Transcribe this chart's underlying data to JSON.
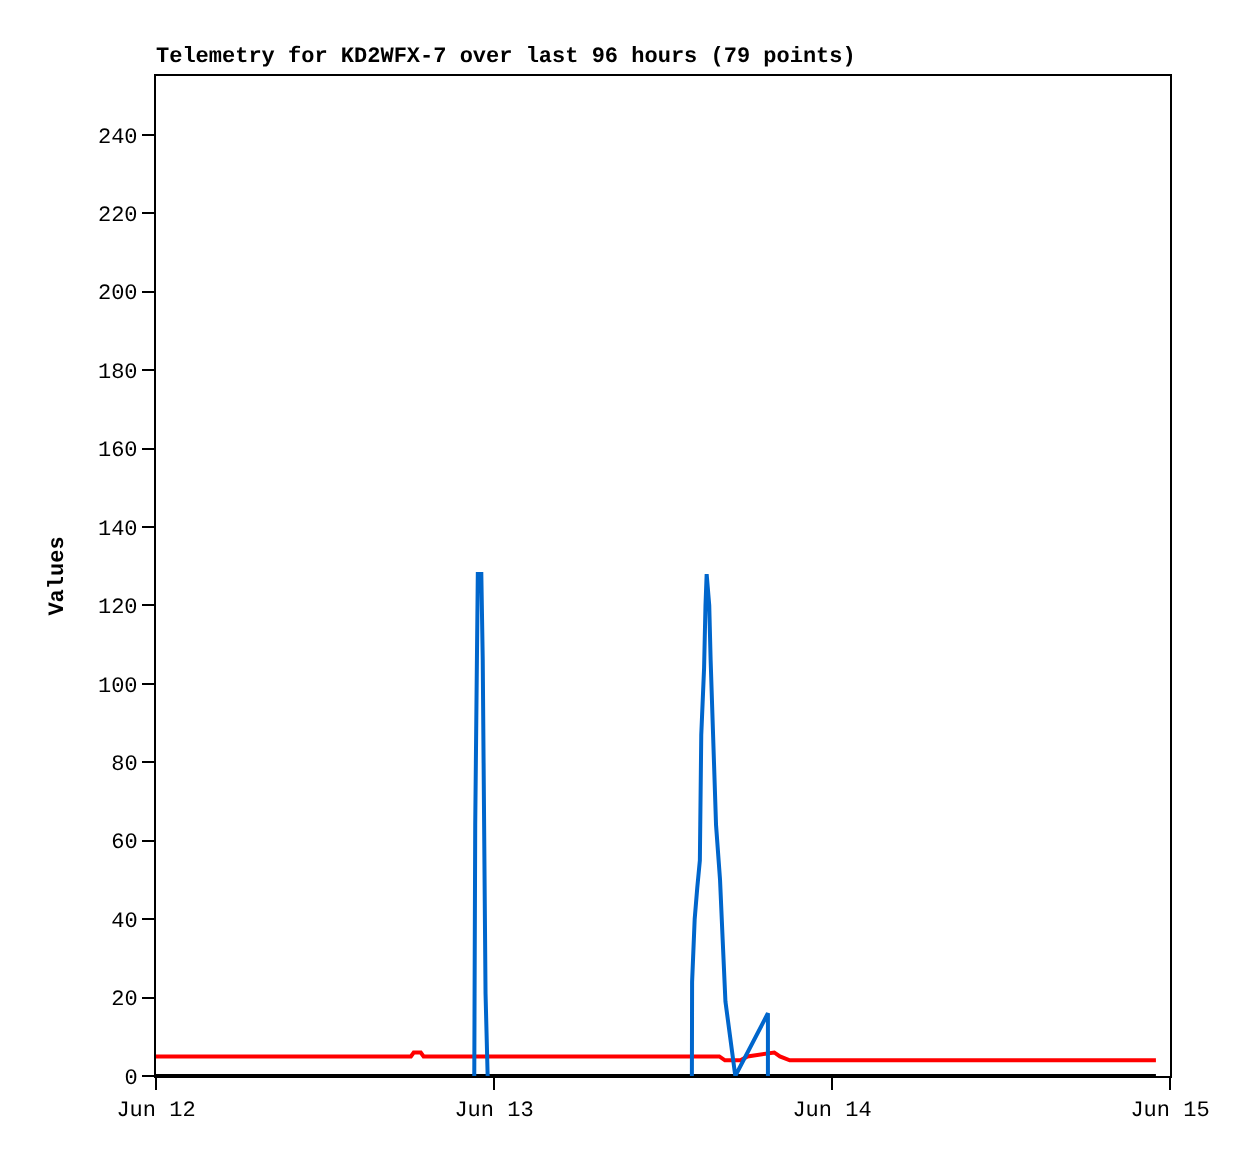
{
  "chart_data": {
    "type": "line",
    "title": "Telemetry for KD2WFX-7 over last 96 hours (79 points)",
    "ylabel": "Values",
    "xlim": [
      "--06-12",
      "--06-15"
    ],
    "xticks": [
      {
        "value": "--06-12",
        "label": "Jun 12"
      },
      {
        "value": "--06-13",
        "label": "Jun 13"
      },
      {
        "value": "--06-14",
        "label": "Jun 14"
      },
      {
        "value": "--06-15",
        "label": "Jun 15"
      }
    ],
    "ylim": [
      0,
      255
    ],
    "yticks": [
      0,
      20,
      40,
      60,
      80,
      100,
      120,
      140,
      160,
      180,
      200,
      220,
      240
    ],
    "grid": false,
    "marker": "none",
    "line_style": "solid",
    "series": [
      {
        "color": "#000000",
        "x": [
          "--06-12T00:00",
          "--06-14T23:00"
        ],
        "values": [
          0,
          0
        ]
      },
      {
        "color": "#ff0000",
        "x": [
          "--06-12T00:00",
          "--06-12T18:06",
          "--06-12T18:18",
          "--06-12T18:48",
          "--06-12T19:00",
          "--06-13T16:00",
          "--06-13T16:24",
          "--06-13T17:30",
          "--06-13T18:00",
          "--06-13T19:54",
          "--06-13T20:18",
          "--06-13T21:00",
          "--06-14T23:00"
        ],
        "values": [
          5,
          5,
          6,
          6,
          5,
          5,
          4,
          4,
          5,
          6,
          5,
          4,
          4
        ]
      },
      {
        "color": "#0066cc",
        "x": [
          "--06-12T22:36",
          "--06-12T22:40",
          "--06-12T22:51",
          "--06-12T23:06",
          "--06-12T23:12",
          "--06-12T23:24",
          "--06-12T23:33",
          "--06-13T06:00",
          "--06-13T14:03",
          "--06-13T14:04",
          "--06-13T14:15",
          "--06-13T14:26",
          "--06-13T14:37",
          "--06-13T14:43",
          "--06-13T14:55",
          "--06-13T15:01",
          "--06-13T15:06",
          "--06-13T15:17",
          "--06-13T15:23",
          "--06-13T15:46",
          "--06-13T16:03",
          "--06-13T16:14",
          "--06-13T16:26",
          "--06-13T17:08",
          "--06-13T19:27",
          "--06-13T19:27"
        ],
        "values": [
          0,
          64,
          128,
          128,
          106,
          21,
          0,
          null,
          0,
          24,
          40,
          48,
          55,
          87,
          104,
          120,
          128,
          120,
          106,
          64,
          50,
          35,
          19,
          0,
          16,
          0
        ]
      }
    ]
  }
}
